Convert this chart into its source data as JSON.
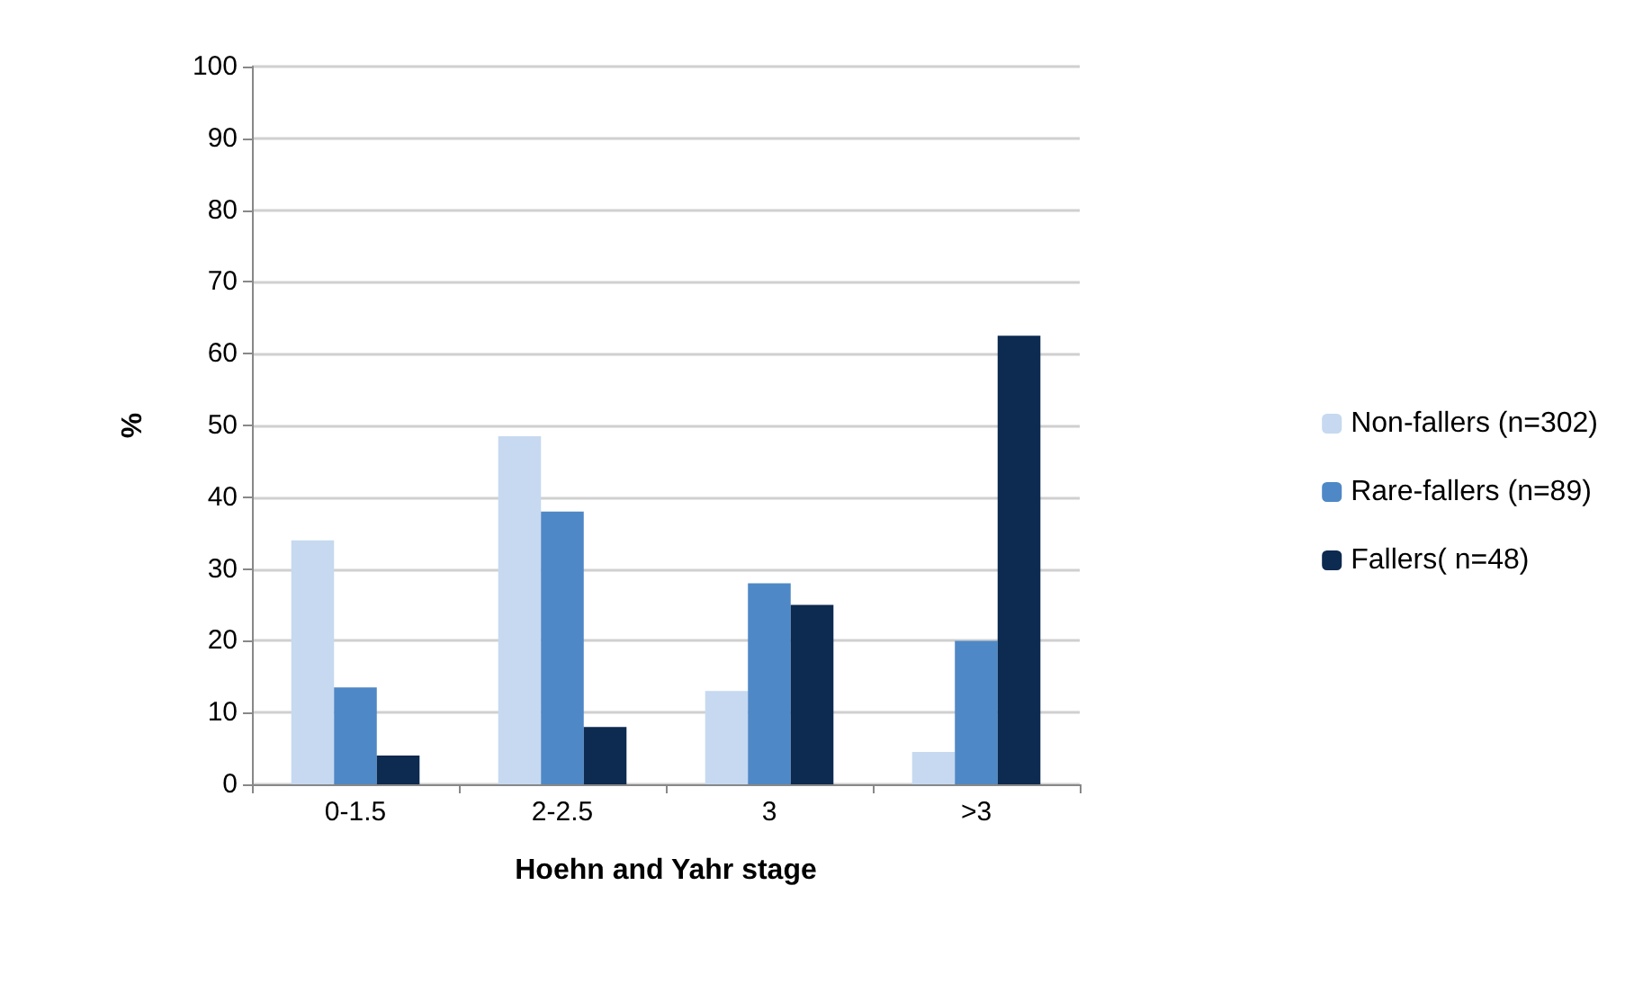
{
  "chart_data": {
    "type": "bar",
    "xlabel": "Hoehn and Yahr stage",
    "ylabel": "%",
    "categories": [
      "0-1.5",
      "2-2.5",
      "3",
      ">3"
    ],
    "series": [
      {
        "name": "Non-fallers (n=302)",
        "color": "#c6d9f0",
        "values": [
          34,
          48.5,
          13,
          4.5
        ]
      },
      {
        "name": "Rare-fallers (n=89)",
        "color": "#4f88c6",
        "values": [
          13.5,
          38,
          28,
          20
        ]
      },
      {
        "name": "Fallers( n=48)",
        "color": "#0d2a50",
        "values": [
          4,
          8,
          25,
          62.5
        ]
      }
    ],
    "ylim": [
      0,
      100
    ],
    "yticks": [
      0,
      10,
      20,
      30,
      40,
      50,
      60,
      70,
      80,
      90,
      100
    ],
    "grid": "y",
    "legend": "right"
  }
}
